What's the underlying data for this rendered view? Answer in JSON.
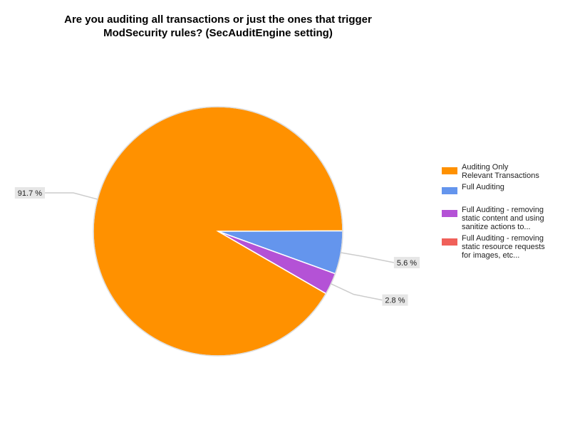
{
  "chart_data": {
    "type": "pie",
    "title": "Are you auditing all transactions or just the ones that trigger\nModSecurity rules? (SecAuditEngine setting)",
    "categories": [
      "Auditing Only\nRelevant Transactions",
      "Full Auditing",
      "Full Auditing - removing\nstatic content and using\nsanitize actions to...",
      "Full Auditing - removing\nstatic resource requests\nfor images, etc..."
    ],
    "values": [
      91.7,
      5.6,
      2.8,
      0
    ],
    "value_labels": [
      "91.7 %",
      "5.6 %",
      "2.8 %",
      null
    ],
    "colors": [
      "#ff9100",
      "#6495ed",
      "#b452d6",
      "#f0605a"
    ],
    "legend": "right"
  }
}
